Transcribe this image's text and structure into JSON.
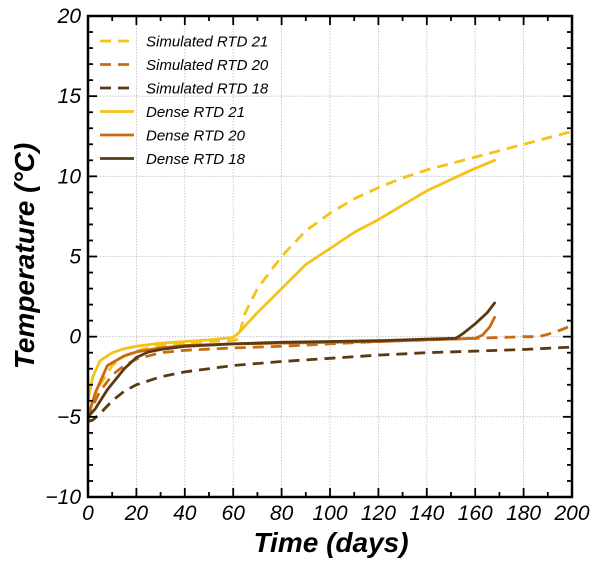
{
  "chart_data": {
    "type": "line",
    "title": "",
    "xlabel": "Time (days)",
    "ylabel": "Temperature (°C)",
    "xlim": [
      0,
      200
    ],
    "ylim": [
      -10,
      20
    ],
    "xticks": [
      "0",
      "20",
      "40",
      "60",
      "80",
      "100",
      "120",
      "140",
      "160",
      "180",
      "200"
    ],
    "yticks": [
      "−10",
      "−5",
      "0",
      "5",
      "10",
      "15",
      "20"
    ],
    "grid": true,
    "legend_position": "top-left",
    "colors": {
      "rtd21": "#f5c218",
      "rtd20": "#cc6a10",
      "rtd18": "#5a3a12",
      "grid": "#bdbdbd",
      "axis": "#000000"
    },
    "series": [
      {
        "name": "Simulated RTD 21",
        "style": "dashed",
        "colorKey": "rtd21",
        "x": [
          0,
          2,
          5,
          10,
          15,
          20,
          25,
          30,
          40,
          50,
          60,
          62,
          65,
          70,
          80,
          90,
          100,
          110,
          120,
          130,
          140,
          150,
          160,
          170,
          180,
          190,
          200
        ],
        "y": [
          -5.2,
          -4.2,
          -3.0,
          -1.8,
          -1.2,
          -0.9,
          -0.7,
          -0.55,
          -0.4,
          -0.3,
          -0.25,
          -0.15,
          1.5,
          3.0,
          5.0,
          6.6,
          7.7,
          8.6,
          9.3,
          9.9,
          10.4,
          10.8,
          11.2,
          11.6,
          12.0,
          12.4,
          12.8
        ]
      },
      {
        "name": "Simulated RTD 20",
        "style": "dashed",
        "colorKey": "rtd20",
        "x": [
          0,
          2,
          5,
          10,
          15,
          20,
          30,
          40,
          60,
          80,
          100,
          120,
          140,
          160,
          180,
          186,
          190,
          195,
          200
        ],
        "y": [
          -5.2,
          -4.3,
          -3.4,
          -2.4,
          -1.8,
          -1.4,
          -1.0,
          -0.85,
          -0.7,
          -0.6,
          -0.45,
          -0.3,
          -0.2,
          -0.1,
          0.0,
          0.0,
          0.15,
          0.4,
          0.7
        ]
      },
      {
        "name": "Simulated RTD 18",
        "style": "dashed",
        "colorKey": "rtd18",
        "x": [
          0,
          2,
          5,
          10,
          15,
          20,
          30,
          40,
          60,
          80,
          100,
          120,
          140,
          160,
          180,
          200
        ],
        "y": [
          -5.3,
          -5.2,
          -4.8,
          -4.0,
          -3.4,
          -3.0,
          -2.5,
          -2.2,
          -1.8,
          -1.55,
          -1.35,
          -1.15,
          -1.0,
          -0.9,
          -0.8,
          -0.65
        ]
      },
      {
        "name": "Dense RTD 21",
        "style": "solid",
        "colorKey": "rtd21",
        "x": [
          0,
          2,
          5,
          10,
          15,
          20,
          30,
          40,
          50,
          60,
          62,
          70,
          80,
          90,
          100,
          110,
          120,
          130,
          140,
          150,
          160,
          168
        ],
        "y": [
          -4.0,
          -2.5,
          -1.5,
          -1.0,
          -0.75,
          -0.6,
          -0.4,
          -0.3,
          -0.2,
          -0.05,
          0.2,
          1.5,
          3.0,
          4.5,
          5.5,
          6.5,
          7.3,
          8.2,
          9.1,
          9.8,
          10.5,
          11.0
        ]
      },
      {
        "name": "Dense RTD 20",
        "style": "solid",
        "colorKey": "rtd20",
        "x": [
          0,
          3,
          8,
          15,
          20,
          30,
          40,
          60,
          80,
          100,
          120,
          140,
          160,
          163,
          166,
          168
        ],
        "y": [
          -5.0,
          -3.5,
          -1.8,
          -1.2,
          -0.95,
          -0.7,
          -0.55,
          -0.45,
          -0.4,
          -0.35,
          -0.3,
          -0.2,
          -0.1,
          0.1,
          0.6,
          1.2
        ]
      },
      {
        "name": "Dense RTD 18",
        "style": "solid",
        "colorKey": "rtd18",
        "x": [
          0,
          3,
          8,
          15,
          20,
          25,
          30,
          40,
          60,
          80,
          100,
          120,
          140,
          152,
          155,
          160,
          165,
          168
        ],
        "y": [
          -5.0,
          -4.5,
          -3.3,
          -2.0,
          -1.3,
          -0.95,
          -0.8,
          -0.6,
          -0.45,
          -0.35,
          -0.3,
          -0.25,
          -0.15,
          -0.1,
          0.2,
          0.8,
          1.5,
          2.1
        ]
      }
    ]
  }
}
